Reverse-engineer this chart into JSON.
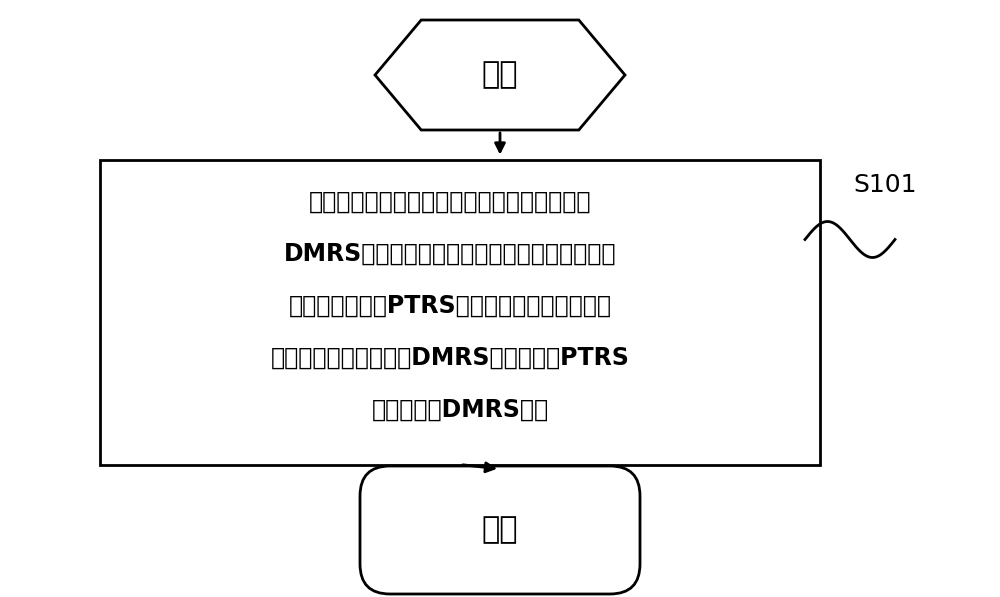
{
  "bg_color": "#ffffff",
  "start_label": "开始",
  "end_label": "结束",
  "step_line1": "通过隐式或显式的方式，将目标解调参考信号",
  "step_line2": "DMRS端口所占用的子载波中，用于映射目标相",
  "step_line3": "位跟踪参考信号PTRS端口的目标子载波的位置",
  "step_line4": "信息指示给终端，目标DMRS端口为目标PTRS",
  "step_line5": "端口对应的DMRS端口",
  "step_id": "S101",
  "line_color": "#000000",
  "fill_color": "#ffffff",
  "text_color": "#000000",
  "font_size_main": 17,
  "font_size_label": 22,
  "font_size_id": 18,
  "lw": 2.0
}
